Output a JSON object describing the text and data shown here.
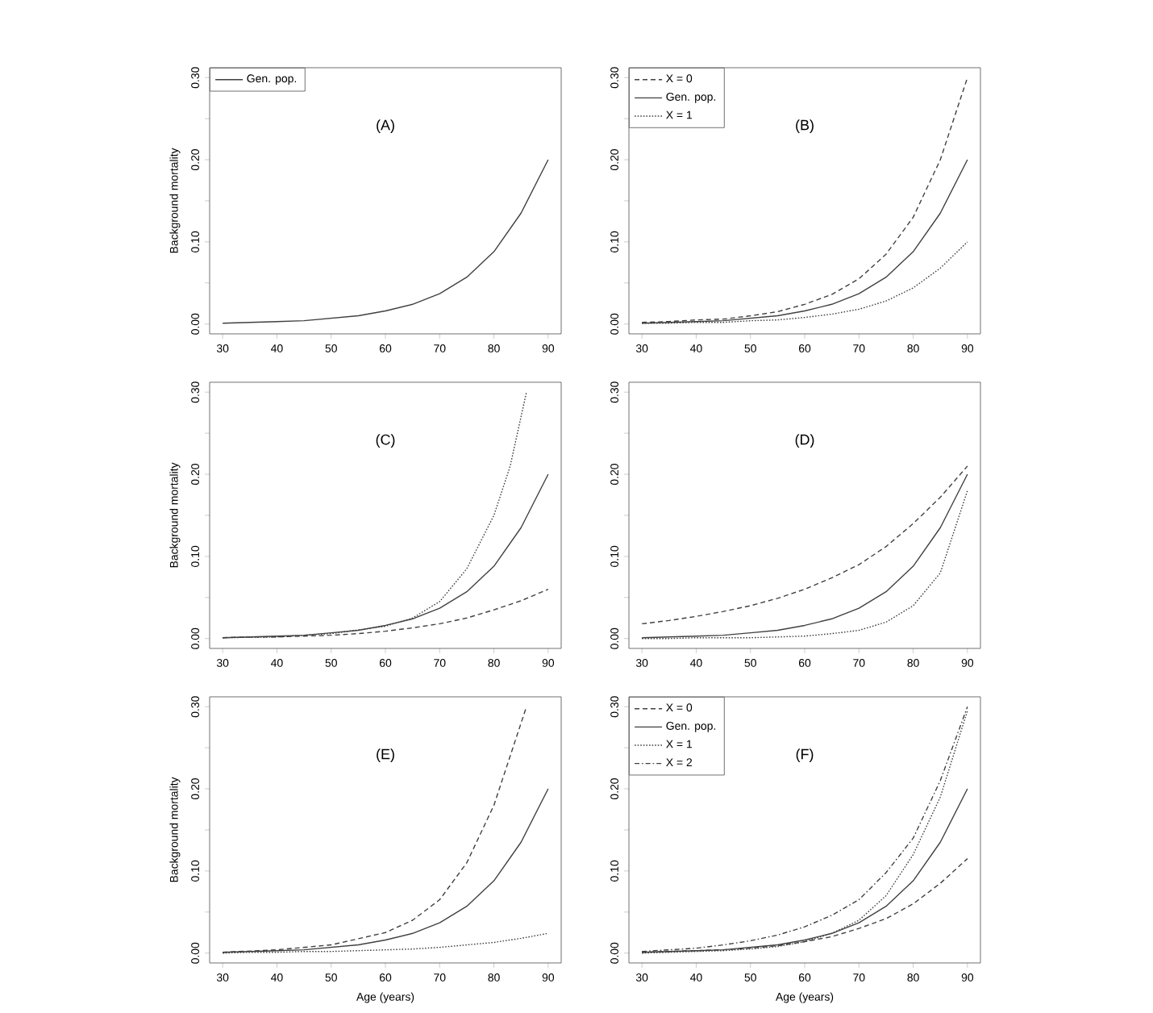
{
  "chart_data": [
    {
      "type": "line",
      "ylabel": "Background mortality",
      "annotations": [
        "(A)"
      ],
      "legend": "top left",
      "x": [
        30,
        35,
        40,
        45,
        50,
        55,
        60,
        65,
        70,
        75,
        80,
        85,
        90
      ],
      "xlim": [
        27.6,
        92.4
      ],
      "ylim": [
        -0.012,
        0.312
      ],
      "xticks": [
        30,
        40,
        50,
        60,
        70,
        80,
        90
      ],
      "yticks": [
        {
          "value": 0,
          "label": "0.00"
        },
        {
          "value": 0.05,
          "label": null
        },
        {
          "value": 0.1,
          "label": "0.10"
        },
        {
          "value": 0.15,
          "label": null
        },
        {
          "value": 0.2,
          "label": "0.20"
        },
        {
          "value": 0.25,
          "label": null
        },
        {
          "value": 0.3,
          "label": "0.30"
        }
      ],
      "series": [
        {
          "name": "Gen. pop.",
          "color": "#404040",
          "line_style": "solid",
          "values": [
            0.001,
            0.002,
            0.003,
            0.004,
            0.007,
            0.01,
            0.016,
            0.024,
            0.037,
            0.057,
            0.088,
            0.135,
            0.2
          ]
        }
      ]
    },
    {
      "type": "line",
      "annotations": [
        "(B)"
      ],
      "legend": "top left",
      "x": [
        30,
        35,
        40,
        45,
        50,
        55,
        60,
        65,
        70,
        75,
        80,
        85,
        90
      ],
      "xlim": [
        27.6,
        92.4
      ],
      "ylim": [
        -0.012,
        0.312
      ],
      "xticks": [
        30,
        40,
        50,
        60,
        70,
        80,
        90
      ],
      "yticks": [
        {
          "value": 0,
          "label": "0.00"
        },
        {
          "value": 0.05,
          "label": null
        },
        {
          "value": 0.1,
          "label": "0.10"
        },
        {
          "value": 0.15,
          "label": null
        },
        {
          "value": 0.2,
          "label": "0.20"
        },
        {
          "value": 0.25,
          "label": null
        },
        {
          "value": 0.3,
          "label": "0.30"
        }
      ],
      "series": [
        {
          "name": "X = 0",
          "color": "#404040",
          "line_style": "dashed",
          "values": [
            0.002,
            0.003,
            0.005,
            0.006,
            0.01,
            0.015,
            0.024,
            0.036,
            0.055,
            0.085,
            0.13,
            0.2,
            0.3
          ]
        },
        {
          "name": "Gen. pop.",
          "color": "#404040",
          "line_style": "solid",
          "values": [
            0.001,
            0.002,
            0.003,
            0.004,
            0.007,
            0.01,
            0.016,
            0.024,
            0.037,
            0.057,
            0.088,
            0.135,
            0.2
          ]
        },
        {
          "name": "X = 1",
          "color": "#404040",
          "line_style": "dotted",
          "values": [
            0.001,
            0.001,
            0.002,
            0.002,
            0.004,
            0.005,
            0.008,
            0.012,
            0.018,
            0.028,
            0.044,
            0.068,
            0.1
          ]
        }
      ]
    },
    {
      "type": "line",
      "ylabel": "Background mortality",
      "annotations": [
        "(C)"
      ],
      "x": [
        30,
        35,
        40,
        45,
        50,
        55,
        60,
        65,
        70,
        75,
        80,
        85,
        90
      ],
      "xlim": [
        27.6,
        92.4
      ],
      "ylim": [
        -0.012,
        0.312
      ],
      "xticks": [
        30,
        40,
        50,
        60,
        70,
        80,
        90
      ],
      "yticks": [
        {
          "value": 0,
          "label": "0.00"
        },
        {
          "value": 0.05,
          "label": null
        },
        {
          "value": 0.1,
          "label": "0.10"
        },
        {
          "value": 0.15,
          "label": null
        },
        {
          "value": 0.2,
          "label": "0.20"
        },
        {
          "value": 0.25,
          "label": null
        },
        {
          "value": 0.3,
          "label": "0.30"
        }
      ],
      "series": [
        {
          "color": "#404040",
          "line_style": "dashed",
          "values": [
            0.001,
            0.002,
            0.002,
            0.003,
            0.004,
            0.006,
            0.009,
            0.013,
            0.018,
            0.025,
            0.035,
            0.046,
            0.06
          ]
        },
        {
          "color": "#404040",
          "line_style": "solid",
          "values": [
            0.001,
            0.002,
            0.003,
            0.004,
            0.007,
            0.01,
            0.016,
            0.024,
            0.037,
            0.057,
            0.088,
            0.135,
            0.2
          ]
        },
        {
          "color": "#404040",
          "line_style": "dotted",
          "x": [
            30,
            40,
            50,
            60,
            65,
            70,
            75,
            80,
            83,
            86
          ],
          "values": [
            0.001,
            0.002,
            0.006,
            0.015,
            0.025,
            0.045,
            0.085,
            0.15,
            0.21,
            0.3
          ]
        }
      ]
    },
    {
      "type": "line",
      "annotations": [
        "(D)"
      ],
      "x": [
        30,
        35,
        40,
        45,
        50,
        55,
        60,
        65,
        70,
        75,
        80,
        85,
        90
      ],
      "xlim": [
        27.6,
        92.4
      ],
      "ylim": [
        -0.012,
        0.312
      ],
      "xticks": [
        30,
        40,
        50,
        60,
        70,
        80,
        90
      ],
      "yticks": [
        {
          "value": 0,
          "label": "0.00"
        },
        {
          "value": 0.05,
          "label": null
        },
        {
          "value": 0.1,
          "label": "0.10"
        },
        {
          "value": 0.15,
          "label": null
        },
        {
          "value": 0.2,
          "label": "0.20"
        },
        {
          "value": 0.25,
          "label": null
        },
        {
          "value": 0.3,
          "label": "0.30"
        }
      ],
      "series": [
        {
          "color": "#404040",
          "line_style": "dashed",
          "values": [
            0.018,
            0.022,
            0.027,
            0.033,
            0.04,
            0.049,
            0.06,
            0.074,
            0.09,
            0.112,
            0.14,
            0.172,
            0.21
          ]
        },
        {
          "color": "#404040",
          "line_style": "solid",
          "values": [
            0.001,
            0.002,
            0.003,
            0.004,
            0.007,
            0.01,
            0.016,
            0.024,
            0.037,
            0.057,
            0.088,
            0.135,
            0.2
          ]
        },
        {
          "color": "#404040",
          "line_style": "dotted",
          "values": [
            0.0,
            0.0,
            0.001,
            0.001,
            0.001,
            0.002,
            0.003,
            0.006,
            0.01,
            0.02,
            0.04,
            0.08,
            0.18
          ]
        }
      ]
    },
    {
      "type": "line",
      "ylabel": "Background mortality",
      "xlabel": "Age (years)",
      "annotations": [
        "(E)"
      ],
      "x": [
        30,
        35,
        40,
        45,
        50,
        55,
        60,
        65,
        70,
        75,
        80,
        85,
        90
      ],
      "xlim": [
        27.6,
        92.4
      ],
      "ylim": [
        -0.012,
        0.312
      ],
      "xticks": [
        30,
        40,
        50,
        60,
        70,
        80,
        90
      ],
      "yticks": [
        {
          "value": 0,
          "label": "0.00"
        },
        {
          "value": 0.05,
          "label": null
        },
        {
          "value": 0.1,
          "label": "0.10"
        },
        {
          "value": 0.15,
          "label": null
        },
        {
          "value": 0.2,
          "label": "0.20"
        },
        {
          "value": 0.25,
          "label": null
        },
        {
          "value": 0.3,
          "label": "0.30"
        }
      ],
      "series": [
        {
          "color": "#404040",
          "line_style": "dashed",
          "x": [
            30,
            40,
            50,
            60,
            65,
            70,
            75,
            80,
            83,
            86
          ],
          "values": [
            0.001,
            0.004,
            0.01,
            0.025,
            0.04,
            0.065,
            0.11,
            0.18,
            0.24,
            0.3
          ]
        },
        {
          "color": "#404040",
          "line_style": "solid",
          "values": [
            0.001,
            0.002,
            0.003,
            0.004,
            0.007,
            0.01,
            0.016,
            0.024,
            0.037,
            0.057,
            0.088,
            0.135,
            0.2
          ]
        },
        {
          "color": "#404040",
          "line_style": "dotted",
          "values": [
            0.0,
            0.001,
            0.001,
            0.002,
            0.002,
            0.003,
            0.004,
            0.005,
            0.007,
            0.01,
            0.013,
            0.018,
            0.024
          ]
        }
      ]
    },
    {
      "type": "line",
      "xlabel": "Age (years)",
      "annotations": [
        "(F)"
      ],
      "legend": "top left",
      "x": [
        30,
        35,
        40,
        45,
        50,
        55,
        60,
        65,
        70,
        75,
        80,
        85,
        90
      ],
      "xlim": [
        27.6,
        92.4
      ],
      "ylim": [
        -0.012,
        0.312
      ],
      "xticks": [
        30,
        40,
        50,
        60,
        70,
        80,
        90
      ],
      "yticks": [
        {
          "value": 0,
          "label": "0.00"
        },
        {
          "value": 0.05,
          "label": null
        },
        {
          "value": 0.1,
          "label": "0.10"
        },
        {
          "value": 0.15,
          "label": null
        },
        {
          "value": 0.2,
          "label": "0.20"
        },
        {
          "value": 0.25,
          "label": null
        },
        {
          "value": 0.3,
          "label": "0.30"
        }
      ],
      "series": [
        {
          "name": "X = 0",
          "color": "#404040",
          "line_style": "dashed",
          "values": [
            0.001,
            0.002,
            0.003,
            0.004,
            0.006,
            0.009,
            0.014,
            0.02,
            0.03,
            0.042,
            0.06,
            0.085,
            0.115
          ]
        },
        {
          "name": "Gen. pop.",
          "color": "#404040",
          "line_style": "solid",
          "values": [
            0.001,
            0.002,
            0.003,
            0.004,
            0.007,
            0.01,
            0.016,
            0.024,
            0.037,
            0.057,
            0.088,
            0.135,
            0.2
          ]
        },
        {
          "name": "X = 1",
          "color": "#404040",
          "line_style": "dotted",
          "values": [
            0.0,
            0.001,
            0.002,
            0.003,
            0.005,
            0.008,
            0.014,
            0.024,
            0.04,
            0.07,
            0.12,
            0.19,
            0.295
          ]
        },
        {
          "name": "X = 2",
          "color": "#404040",
          "line_style": "dashdot",
          "values": [
            0.002,
            0.004,
            0.006,
            0.01,
            0.015,
            0.022,
            0.032,
            0.046,
            0.065,
            0.098,
            0.14,
            0.21,
            0.3
          ]
        }
      ]
    }
  ]
}
